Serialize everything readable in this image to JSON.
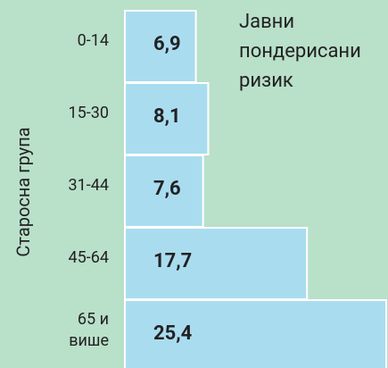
{
  "chart_data": {
    "type": "hbar",
    "title": "Јавни\nпондерисани\nризик",
    "ylabel": "Старосна група",
    "categories": [
      "0-14",
      "15-30",
      "31-44",
      "45-64",
      "65 и\nвише"
    ],
    "values": [
      6.9,
      8.1,
      7.6,
      17.7,
      25.4
    ],
    "value_labels": [
      "6,9",
      "8,1",
      "7,6",
      "17,7",
      "25,4"
    ],
    "color": "#aadcf0",
    "background": "#b9e0c9"
  }
}
